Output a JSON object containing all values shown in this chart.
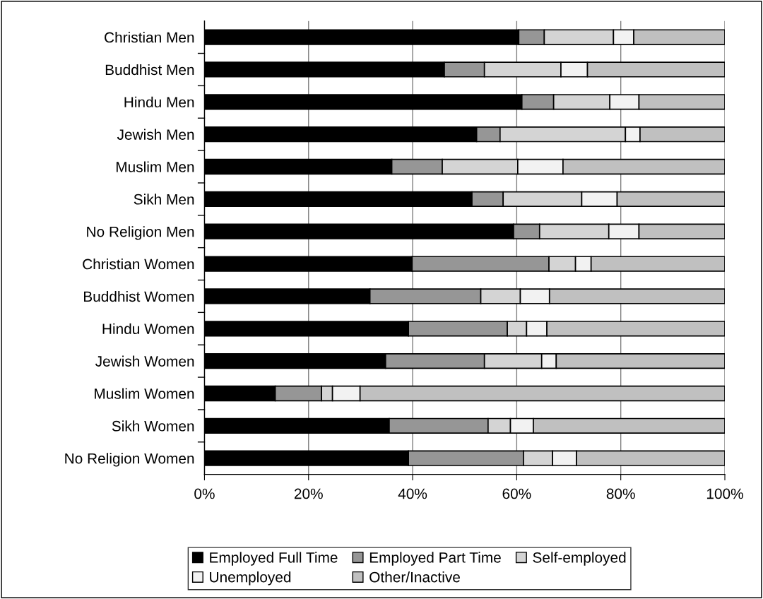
{
  "chart_data": {
    "type": "bar",
    "orientation": "horizontal",
    "stacked": true,
    "categories": [
      "Christian Men",
      "Buddhist Men",
      "Hindu Men",
      "Jewish Men",
      "Muslim Men",
      "Sikh Men",
      "No Religion Men",
      "Christian Women",
      "Buddhist Women",
      "Hindu Women",
      "Jewish Women",
      "Muslim Women",
      "Sikh Women",
      "No Religion Women"
    ],
    "series": [
      {
        "name": "Employed Full Time",
        "color": "#000000",
        "values": [
          60.4,
          46.1,
          61.0,
          52.3,
          36.0,
          51.4,
          59.4,
          39.9,
          31.8,
          39.2,
          34.8,
          13.6,
          35.5,
          39.2
        ]
      },
      {
        "name": "Employed Part Time",
        "color": "#969696",
        "values": [
          4.9,
          7.7,
          6.1,
          4.5,
          9.7,
          6.0,
          5.0,
          26.3,
          21.3,
          19.0,
          19.0,
          8.9,
          19.0,
          22.1
        ]
      },
      {
        "name": "Self-employed",
        "color": "#d4d4d4",
        "values": [
          13.3,
          14.7,
          10.8,
          24.1,
          14.5,
          15.1,
          13.3,
          5.1,
          7.6,
          3.7,
          11.0,
          2.1,
          4.3,
          5.6
        ]
      },
      {
        "name": "Unemployed",
        "color": "#f2f2f2",
        "values": [
          3.9,
          5.1,
          5.6,
          2.8,
          8.7,
          6.8,
          5.8,
          3.0,
          5.6,
          3.9,
          2.8,
          5.3,
          4.4,
          4.6
        ]
      },
      {
        "name": "Other/Inactive",
        "color": "#c0c0c0",
        "values": [
          17.5,
          26.4,
          16.5,
          16.3,
          31.1,
          20.7,
          16.5,
          25.7,
          33.7,
          34.2,
          32.4,
          70.1,
          36.8,
          28.5
        ]
      }
    ],
    "xlim": [
      0,
      100
    ],
    "xticks": [
      {
        "value": 0,
        "label": "0%"
      },
      {
        "value": 20,
        "label": "20%"
      },
      {
        "value": 40,
        "label": "40%"
      },
      {
        "value": 60,
        "label": "60%"
      },
      {
        "value": 80,
        "label": "80%"
      },
      {
        "value": 100,
        "label": "100%"
      }
    ],
    "grid": "x",
    "legend": "bottom"
  }
}
